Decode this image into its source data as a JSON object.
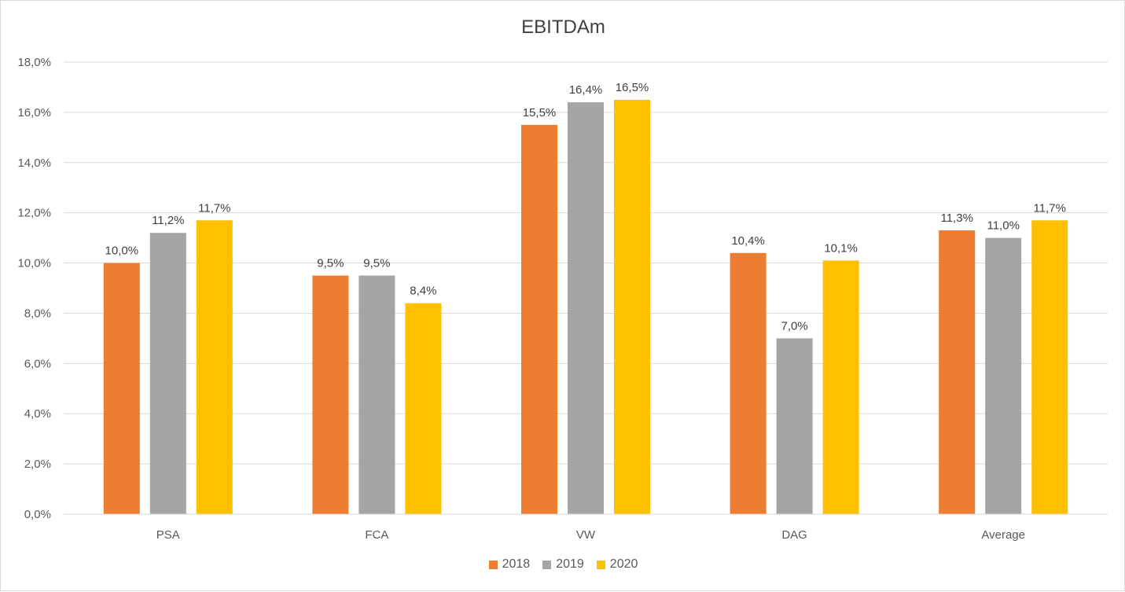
{
  "chart_data": {
    "type": "bar",
    "title": "EBITDAm",
    "categories": [
      "PSA",
      "FCA",
      "VW",
      "DAG",
      "Average"
    ],
    "series": [
      {
        "name": "2018",
        "color": "#ED7D31",
        "values": [
          10.0,
          9.5,
          15.5,
          10.4,
          11.3
        ],
        "labels": [
          "10,0%",
          "9,5%",
          "15,5%",
          "10,4%",
          "11,3%"
        ]
      },
      {
        "name": "2019",
        "color": "#A5A5A5",
        "values": [
          11.2,
          9.5,
          16.4,
          7.0,
          11.0
        ],
        "labels": [
          "11,2%",
          "9,5%",
          "16,4%",
          "7,0%",
          "11,0%"
        ]
      },
      {
        "name": "2020",
        "color": "#FFC000",
        "values": [
          11.7,
          8.4,
          16.5,
          10.1,
          11.7
        ],
        "labels": [
          "11,7%",
          "8,4%",
          "16,5%",
          "10,1%",
          "11,7%"
        ]
      }
    ],
    "ylim": [
      0,
      18
    ],
    "yticks": [
      0,
      2,
      4,
      6,
      8,
      10,
      12,
      14,
      16,
      18
    ],
    "ytick_labels": [
      "0,0%",
      "2,0%",
      "4,0%",
      "6,0%",
      "8,0%",
      "10,0%",
      "12,0%",
      "14,0%",
      "16,0%",
      "18,0%"
    ],
    "grid": true,
    "legend_position": "bottom"
  }
}
